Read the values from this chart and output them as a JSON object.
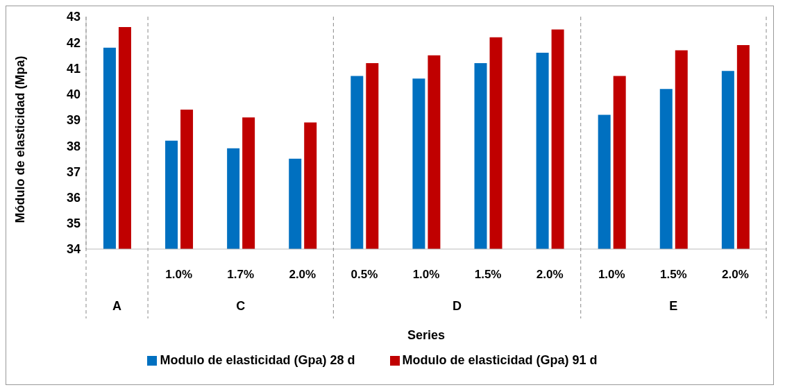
{
  "chart_data": {
    "type": "bar",
    "xlabel": "Series",
    "ylabel": "Módulo de elasticidad (Mpa)",
    "categories": [
      null,
      "1.0%",
      "1.7%",
      "2.0%",
      "0.5%",
      "1.0%",
      "1.5%",
      "2.0%",
      "1.0%",
      "1.5%",
      "2.0%"
    ],
    "annotations": [
      "A",
      "C",
      "D",
      "E"
    ],
    "series": [
      {
        "name": "Modulo de elasticidad (Gpa) 28 d",
        "color": "#0070c0",
        "values": [
          41.8,
          38.2,
          37.9,
          37.5,
          40.7,
          40.6,
          41.2,
          41.6,
          39.2,
          40.2,
          40.9
        ]
      },
      {
        "name": "Modulo de elasticidad (Gpa) 91 d",
        "color": "#c00000",
        "values": [
          42.6,
          39.4,
          39.1,
          38.9,
          41.2,
          41.5,
          42.2,
          42.5,
          40.7,
          41.7,
          41.9
        ]
      }
    ],
    "ylim": [
      34,
      43
    ],
    "yticks": [
      34,
      35,
      36,
      37,
      38,
      39,
      40,
      41,
      42,
      43
    ],
    "grid": false,
    "legend": "bottom"
  }
}
